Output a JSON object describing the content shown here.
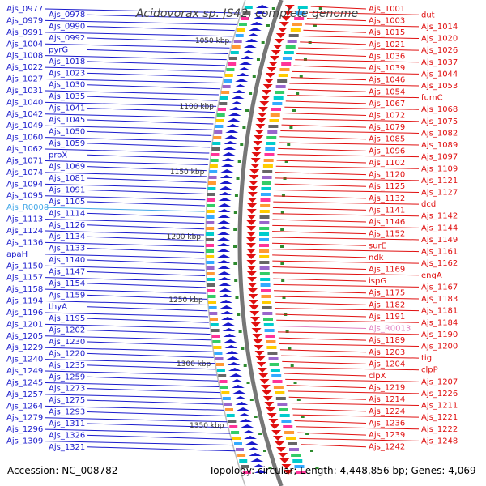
{
  "title": "Acidovorax sp. JS42, complete genome",
  "accession": "Accession: NC_008782",
  "summary": "Topology: circular; Length: 4,448,856 bp; Genes: 4,069",
  "colors": {
    "left": "#1a1acc",
    "right": "#e01010",
    "rna": "#44a8e8",
    "pink": "#e080c0",
    "ring": "#777777",
    "tick": "#2e8b2e"
  },
  "scale_labels": [
    "1050 kbp",
    "1100 kbp",
    "1150 kbp",
    "1200 kbp",
    "1250 kbp",
    "1300 kbp",
    "1350 kbp"
  ],
  "left_labels": [
    {
      "t": "Ajs_0977"
    },
    {
      "t": "Ajs_0978"
    },
    {
      "t": "Ajs_0979"
    },
    {
      "t": "Ajs_0990"
    },
    {
      "t": "Ajs_0991"
    },
    {
      "t": "Ajs_0992"
    },
    {
      "t": "Ajs_1004"
    },
    {
      "t": "pyrG"
    },
    {
      "t": "Ajs_1008"
    },
    {
      "t": "Ajs_1018"
    },
    {
      "t": "Ajs_1022"
    },
    {
      "t": "Ajs_1023"
    },
    {
      "t": "Ajs_1027"
    },
    {
      "t": "Ajs_1030"
    },
    {
      "t": "Ajs_1031"
    },
    {
      "t": "Ajs_1035"
    },
    {
      "t": "Ajs_1040"
    },
    {
      "t": "Ajs_1041"
    },
    {
      "t": "Ajs_1042"
    },
    {
      "t": "Ajs_1045"
    },
    {
      "t": "Ajs_1049"
    },
    {
      "t": "Ajs_1050"
    },
    {
      "t": "Ajs_1060"
    },
    {
      "t": "Ajs_1059"
    },
    {
      "t": "Ajs_1062"
    },
    {
      "t": "proX"
    },
    {
      "t": "Ajs_1071"
    },
    {
      "t": "Ajs_1069"
    },
    {
      "t": "Ajs_1074"
    },
    {
      "t": "Ajs_1081"
    },
    {
      "t": "Ajs_1094"
    },
    {
      "t": "Ajs_1091"
    },
    {
      "t": "Ajs_1095"
    },
    {
      "t": "Ajs_1105"
    },
    {
      "t": "Ajs_R0008",
      "rna": true
    },
    {
      "t": "Ajs_1114"
    },
    {
      "t": "Ajs_1113"
    },
    {
      "t": "Ajs_1126"
    },
    {
      "t": "Ajs_1124"
    },
    {
      "t": "Ajs_1134"
    },
    {
      "t": "Ajs_1136"
    },
    {
      "t": "Ajs_1133"
    },
    {
      "t": "apaH"
    },
    {
      "t": "Ajs_1140"
    },
    {
      "t": "Ajs_1150"
    },
    {
      "t": "Ajs_1147"
    },
    {
      "t": "Ajs_1157"
    },
    {
      "t": "Ajs_1154"
    },
    {
      "t": "Ajs_1158"
    },
    {
      "t": "Ajs_1159"
    },
    {
      "t": "Ajs_1194"
    },
    {
      "t": "thyA"
    },
    {
      "t": "Ajs_1196"
    },
    {
      "t": "Ajs_1195"
    },
    {
      "t": "Ajs_1201"
    },
    {
      "t": "Ajs_1202"
    },
    {
      "t": "Ajs_1205"
    },
    {
      "t": "Ajs_1230"
    },
    {
      "t": "Ajs_1229"
    },
    {
      "t": "Ajs_1220"
    },
    {
      "t": "Ajs_1240"
    },
    {
      "t": "Ajs_1235"
    },
    {
      "t": "Ajs_1249"
    },
    {
      "t": "Ajs_1259"
    },
    {
      "t": "Ajs_1245"
    },
    {
      "t": "Ajs_1273"
    },
    {
      "t": "Ajs_1257"
    },
    {
      "t": "Ajs_1275"
    },
    {
      "t": "Ajs_1264"
    },
    {
      "t": "Ajs_1293"
    },
    {
      "t": "Ajs_1279"
    },
    {
      "t": "Ajs_1311"
    },
    {
      "t": "Ajs_1296"
    },
    {
      "t": "Ajs_1326"
    },
    {
      "t": "Ajs_1309"
    },
    {
      "t": "Ajs_1321"
    }
  ],
  "right_labels": [
    {
      "t": "Ajs_1001"
    },
    {
      "t": "dut"
    },
    {
      "t": "Ajs_1003"
    },
    {
      "t": "Ajs_1014"
    },
    {
      "t": "Ajs_1015"
    },
    {
      "t": "Ajs_1020"
    },
    {
      "t": "Ajs_1021"
    },
    {
      "t": "Ajs_1026"
    },
    {
      "t": "Ajs_1036"
    },
    {
      "t": "Ajs_1037"
    },
    {
      "t": "Ajs_1039"
    },
    {
      "t": "Ajs_1044"
    },
    {
      "t": "Ajs_1046"
    },
    {
      "t": "Ajs_1053"
    },
    {
      "t": "Ajs_1054"
    },
    {
      "t": "fumC"
    },
    {
      "t": "Ajs_1067"
    },
    {
      "t": "Ajs_1068"
    },
    {
      "t": "Ajs_1072"
    },
    {
      "t": "Ajs_1075"
    },
    {
      "t": "Ajs_1079"
    },
    {
      "t": "Ajs_1082"
    },
    {
      "t": "Ajs_1085"
    },
    {
      "t": "Ajs_1089"
    },
    {
      "t": "Ajs_1096"
    },
    {
      "t": "Ajs_1097"
    },
    {
      "t": "Ajs_1102"
    },
    {
      "t": "Ajs_1109"
    },
    {
      "t": "Ajs_1120"
    },
    {
      "t": "Ajs_1121"
    },
    {
      "t": "Ajs_1125"
    },
    {
      "t": "Ajs_1127"
    },
    {
      "t": "Ajs_1132"
    },
    {
      "t": "dcd"
    },
    {
      "t": "Ajs_1141"
    },
    {
      "t": "Ajs_1142"
    },
    {
      "t": "Ajs_1146"
    },
    {
      "t": "Ajs_1144"
    },
    {
      "t": "Ajs_1152"
    },
    {
      "t": "Ajs_1149"
    },
    {
      "t": "surE"
    },
    {
      "t": "Ajs_1161"
    },
    {
      "t": "ndk"
    },
    {
      "t": "Ajs_1162"
    },
    {
      "t": "Ajs_1169"
    },
    {
      "t": "engA"
    },
    {
      "t": "ispG"
    },
    {
      "t": "Ajs_1167"
    },
    {
      "t": "Ajs_1175"
    },
    {
      "t": "Ajs_1183"
    },
    {
      "t": "Ajs_1182"
    },
    {
      "t": "Ajs_1181"
    },
    {
      "t": "Ajs_1191"
    },
    {
      "t": "Ajs_1184"
    },
    {
      "t": "Ajs_R0013",
      "rna": true
    },
    {
      "t": "Ajs_1190"
    },
    {
      "t": "Ajs_1189"
    },
    {
      "t": "Ajs_1200"
    },
    {
      "t": "Ajs_1203"
    },
    {
      "t": "tig"
    },
    {
      "t": "Ajs_1204"
    },
    {
      "t": "clpP"
    },
    {
      "t": "clpX"
    },
    {
      "t": "Ajs_1207"
    },
    {
      "t": "Ajs_1219"
    },
    {
      "t": "Ajs_1226"
    },
    {
      "t": "Ajs_1214"
    },
    {
      "t": "Ajs_1211"
    },
    {
      "t": "Ajs_1224"
    },
    {
      "t": "Ajs_1221"
    },
    {
      "t": "Ajs_1236"
    },
    {
      "t": "Ajs_1222"
    },
    {
      "t": "Ajs_1239"
    },
    {
      "t": "Ajs_1248"
    },
    {
      "t": "Ajs_1242"
    }
  ]
}
